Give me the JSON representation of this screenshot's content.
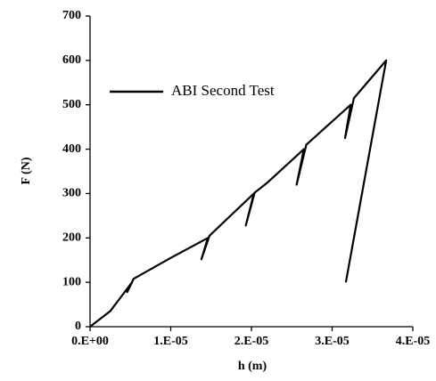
{
  "chart_data": {
    "type": "line",
    "xlabel": "h (m)",
    "ylabel": "F (N)",
    "xlim": [
      0,
      4e-05
    ],
    "ylim": [
      0,
      700
    ],
    "xticks": [
      {
        "value": 0,
        "label": "0.E+00"
      },
      {
        "value": 1e-05,
        "label": "1.E-05"
      },
      {
        "value": 2e-05,
        "label": "2.E-05"
      },
      {
        "value": 3e-05,
        "label": "3.E-05"
      },
      {
        "value": 4e-05,
        "label": "4.E-05"
      }
    ],
    "yticks": [
      0,
      100,
      200,
      300,
      400,
      500,
      600,
      700
    ],
    "grid": false,
    "legend": "upper left",
    "series": [
      {
        "name": "ABI Second Test",
        "color": "#000000",
        "x": [
          0,
          2.5e-06,
          5.2e-06,
          4.6e-06,
          5.4e-06,
          1e-05,
          1.46e-05,
          1.38e-05,
          1.48e-05,
          2.03e-05,
          1.93e-05,
          2.04e-05,
          2.2e-05,
          2.65e-05,
          2.56e-05,
          2.68e-05,
          3.23e-05,
          3.16e-05,
          3.27e-05,
          3.67e-05,
          3.17e-05
        ],
        "values": [
          0,
          35,
          100,
          78,
          108,
          155,
          200,
          152,
          205,
          300,
          228,
          302,
          325,
          400,
          320,
          410,
          500,
          425,
          515,
          600,
          100
        ]
      }
    ]
  }
}
